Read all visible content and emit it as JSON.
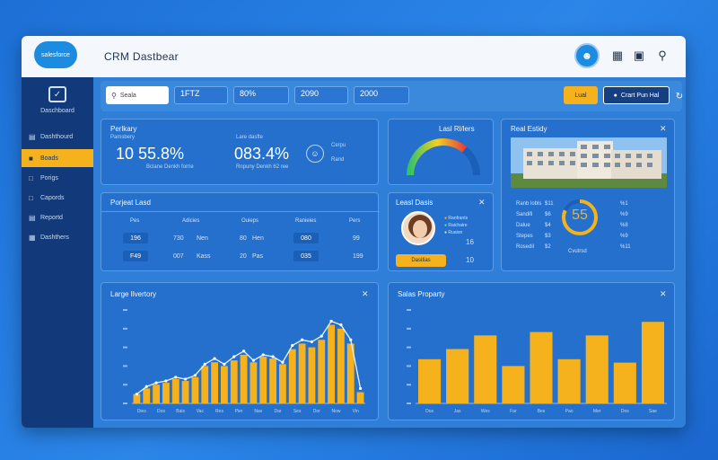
{
  "app": {
    "logo": "salesforce",
    "title": "CRM   Dastbear"
  },
  "sidebar": {
    "header_label": "Daschboard",
    "items": [
      {
        "label": "Dashthourd",
        "icon": "chart-icon",
        "active": false
      },
      {
        "label": "Boads",
        "icon": "folder-icon",
        "active": true
      },
      {
        "label": "Porigs",
        "icon": "doc-icon",
        "active": false
      },
      {
        "label": "Capords",
        "icon": "card-icon",
        "active": false
      },
      {
        "label": "Reportd",
        "icon": "report-icon",
        "active": false
      },
      {
        "label": "Dashthers",
        "icon": "grid-icon",
        "active": false
      }
    ]
  },
  "toolbar": {
    "search_placeholder": "Seala",
    "chips": [
      {
        "value": "1FTZ",
        "sub": ""
      },
      {
        "value": "80%",
        "sub": ""
      },
      {
        "value": "2090",
        "sub": ""
      },
      {
        "value": "2000",
        "sub": ""
      }
    ],
    "primary_button": "Lual",
    "secondary_button": "Crart Pun Hal"
  },
  "kpi_panel": {
    "title": "Perlkary",
    "subtitle": "Pamsbery",
    "left_big": "10  55.8%",
    "left_note": "Bclane Denkh forrie",
    "right_title": "Lare dasfte",
    "right_big": "083.4%",
    "right_note": "Rnpuny Denkh 62 ree",
    "icon_label": "Cerpu",
    "icon_sub": "Rand"
  },
  "gauge_panel": {
    "title": "Lasl Rl/lers",
    "value": 0.72
  },
  "real_estate": {
    "title": "Real Estidy",
    "score": "55",
    "score_fraction": 0.82,
    "rows_left": [
      "Ranb lobls",
      "Sandifi",
      "Dalue",
      "Stepes",
      "Rosedil"
    ],
    "rows_mid": [
      "$11",
      "$6",
      "$4",
      "$3",
      "$2"
    ],
    "rows_right": [
      "%1",
      "%9",
      "%8",
      "%9",
      "%11"
    ],
    "footer": "Cvutrsd"
  },
  "projected_lead": {
    "title": "Porjeat Lasd",
    "headers": [
      "Pes",
      "Adicies",
      "Ouieps",
      "Ranieies",
      "Pers"
    ],
    "row1": [
      "196",
      "730",
      "Nen",
      "80",
      "Hen",
      "080",
      "99"
    ],
    "row2": [
      "F49",
      "007",
      "Kass",
      "20",
      "Pas",
      "035",
      "199"
    ]
  },
  "lead_deals": {
    "title": "Leasl Dasis",
    "legend": [
      "Ranfrants",
      "Raichaire",
      "Ruaion"
    ],
    "values": [
      "16",
      "10"
    ],
    "button": "Dasitias"
  },
  "large_inventory": {
    "title": "Large Ilvertory",
    "chart_data": {
      "type": "bar",
      "values": [
        5,
        8,
        10,
        11,
        13,
        12,
        14,
        20,
        22,
        20,
        23,
        26,
        22,
        25,
        24,
        21,
        29,
        32,
        30,
        34,
        42,
        40,
        32,
        6
      ],
      "trend": [
        5,
        9,
        11,
        12,
        14,
        13,
        15,
        21,
        24,
        21,
        25,
        28,
        23,
        26,
        25,
        22,
        31,
        34,
        33,
        36,
        44,
        42,
        34,
        8
      ],
      "ylim": [
        0,
        50
      ],
      "xlabels": [
        "Dies",
        "Dos",
        "Bais",
        "Vac",
        "Res",
        "Pier",
        "Nav",
        "Dar",
        "Ses",
        "Dor",
        "Now",
        "Vin"
      ]
    }
  },
  "sales_property": {
    "title": "Salas Proparty",
    "chart_data": {
      "type": "bar",
      "values": [
        26,
        32,
        40,
        22,
        42,
        26,
        40,
        24,
        48
      ],
      "ylim": [
        0,
        55
      ],
      "xlabels": [
        "Dos",
        "Jas",
        "Wes",
        "Far",
        "Bes",
        "Pao",
        "Mer",
        "Dos",
        "Sae"
      ]
    }
  },
  "colors": {
    "accent": "#f5b21c",
    "panel": "#2570cd",
    "sidebar": "#123a7a"
  }
}
